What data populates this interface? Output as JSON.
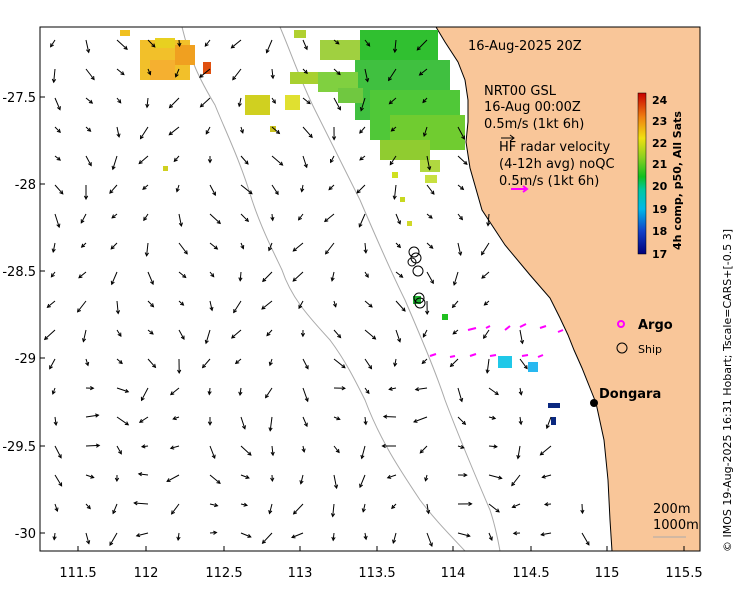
{
  "map": {
    "date": "16-Aug-2025 20Z",
    "credit": "© IMOS 19-Aug-2025 16:31 Hobart; Tscale=CARS+[-0.5 3]",
    "colorbar": {
      "title": "4h comp, p50, All Sats",
      "ticks": [
        "24",
        "23",
        "22",
        "21",
        "20",
        "19",
        "18",
        "17"
      ],
      "min": 17,
      "max": 24
    },
    "gsl": {
      "line1": "NRT00 GSL",
      "line2": "16-Aug 00:00Z",
      "line3": "0.5m/s (1kt 6h)"
    },
    "hf": {
      "line1": "HF radar velocity",
      "line2": "(4-12h avg) noQC",
      "line3": "0.5m/s (1kt 6h)"
    },
    "legend": {
      "argo": "Argo",
      "ship": "Ship"
    },
    "place": "Dongara",
    "isobaths": {
      "shallow": "200m",
      "deep": "1000m"
    },
    "x_ticks": [
      "111.5",
      "112",
      "112.5",
      "113",
      "113.5",
      "114",
      "114.5",
      "115",
      "115.5"
    ],
    "y_ticks": [
      "-27.5",
      "-28",
      "-28.5",
      "-29",
      "-29.5",
      "-30"
    ],
    "colors": {
      "land": "#f9c699",
      "isobath": "#aaaaaa",
      "hf_arrow": "#ff00ff",
      "argo": "#ff00ff"
    }
  }
}
